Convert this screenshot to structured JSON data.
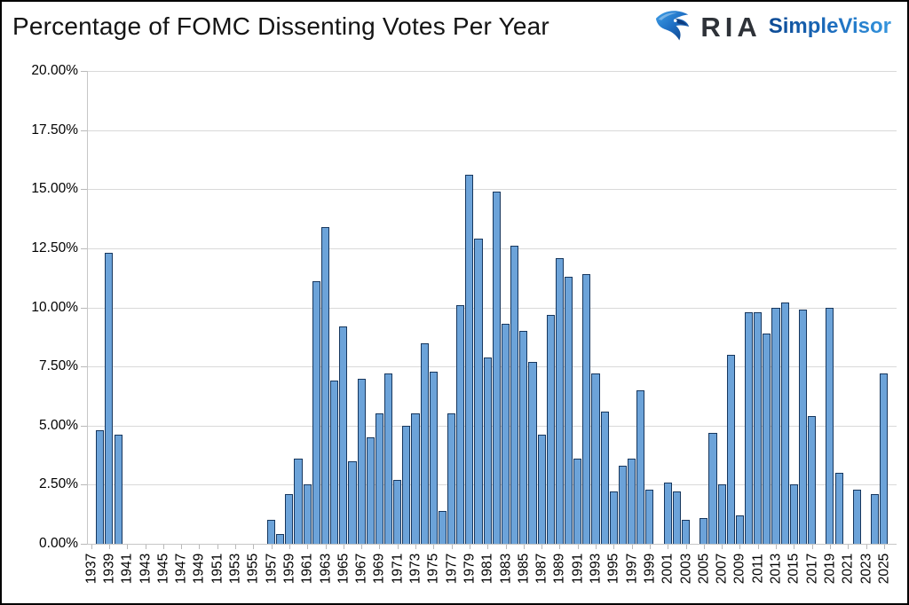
{
  "header": {
    "title": "Percentage of FOMC Dissenting Votes Per Year",
    "logo": {
      "brand": "RIA",
      "product": "SimpleVisor",
      "icon": "ria-eagle-logo-icon",
      "brand_color": "#2e3238",
      "product_color": "#1d6fc0",
      "icon_colors": [
        "#0d3d80",
        "#1e6fc4",
        "#3fa0e8"
      ]
    }
  },
  "chart_data": {
    "type": "bar",
    "title": "Percentage of FOMC Dissenting Votes Per Year",
    "xlabel": "",
    "ylabel": "",
    "ylim": [
      0,
      20
    ],
    "ytick_step": 2.5,
    "grid": true,
    "legend": "none",
    "bar_fill": "#6ca3d9",
    "bar_border": "#17375e",
    "categories": [
      1937,
      1938,
      1939,
      1940,
      1941,
      1942,
      1943,
      1944,
      1945,
      1946,
      1947,
      1948,
      1949,
      1950,
      1951,
      1952,
      1953,
      1954,
      1955,
      1956,
      1957,
      1958,
      1959,
      1960,
      1961,
      1962,
      1963,
      1964,
      1965,
      1966,
      1967,
      1968,
      1969,
      1970,
      1971,
      1972,
      1973,
      1974,
      1975,
      1976,
      1977,
      1978,
      1979,
      1980,
      1981,
      1982,
      1983,
      1984,
      1985,
      1986,
      1987,
      1988,
      1989,
      1990,
      1991,
      1992,
      1993,
      1994,
      1995,
      1996,
      1997,
      1998,
      1999,
      2000,
      2001,
      2002,
      2003,
      2004,
      2005,
      2006,
      2007,
      2008,
      2009,
      2010,
      2011,
      2012,
      2013,
      2014,
      2015,
      2016,
      2017,
      2018,
      2019,
      2020,
      2021,
      2022,
      2023,
      2024,
      2025
    ],
    "values": [
      0,
      4.8,
      12.3,
      4.6,
      0,
      0,
      0,
      0,
      0,
      0,
      0,
      0,
      0,
      0,
      0,
      0,
      0,
      0,
      0,
      0,
      1.0,
      0.4,
      2.1,
      3.6,
      2.5,
      11.1,
      13.4,
      6.9,
      9.2,
      3.5,
      7.0,
      4.5,
      5.5,
      7.2,
      2.7,
      5.0,
      5.5,
      8.5,
      7.3,
      1.4,
      5.5,
      10.1,
      15.6,
      12.9,
      7.9,
      14.9,
      9.3,
      12.6,
      9.0,
      7.7,
      4.6,
      9.7,
      12.1,
      11.3,
      3.6,
      11.4,
      7.2,
      5.6,
      2.2,
      3.3,
      3.6,
      6.5,
      2.3,
      0,
      2.6,
      2.2,
      1.0,
      0,
      1.1,
      4.7,
      2.5,
      8.0,
      1.2,
      9.8,
      9.8,
      8.9,
      10.0,
      10.2,
      2.5,
      9.9,
      5.4,
      0,
      10.0,
      3.0,
      0,
      2.3,
      0,
      2.1,
      7.2
    ],
    "y_tick_labels": [
      "0.00%",
      "2.50%",
      "5.00%",
      "7.50%",
      "10.00%",
      "12.50%",
      "15.00%",
      "17.50%",
      "20.00%"
    ],
    "x_tick_labels": [
      "1937",
      "1939",
      "1941",
      "1943",
      "1945",
      "1947",
      "1949",
      "1951",
      "1953",
      "1955",
      "1957",
      "1959",
      "1961",
      "1963",
      "1965",
      "1967",
      "1969",
      "1971",
      "1973",
      "1975",
      "1977",
      "1979",
      "1981",
      "1983",
      "1985",
      "1987",
      "1989",
      "1991",
      "1993",
      "1995",
      "1997",
      "1999",
      "2001",
      "2003",
      "2005",
      "2007",
      "2009",
      "2011",
      "2013",
      "2015",
      "2017",
      "2019",
      "2021",
      "2023",
      "2025"
    ]
  }
}
